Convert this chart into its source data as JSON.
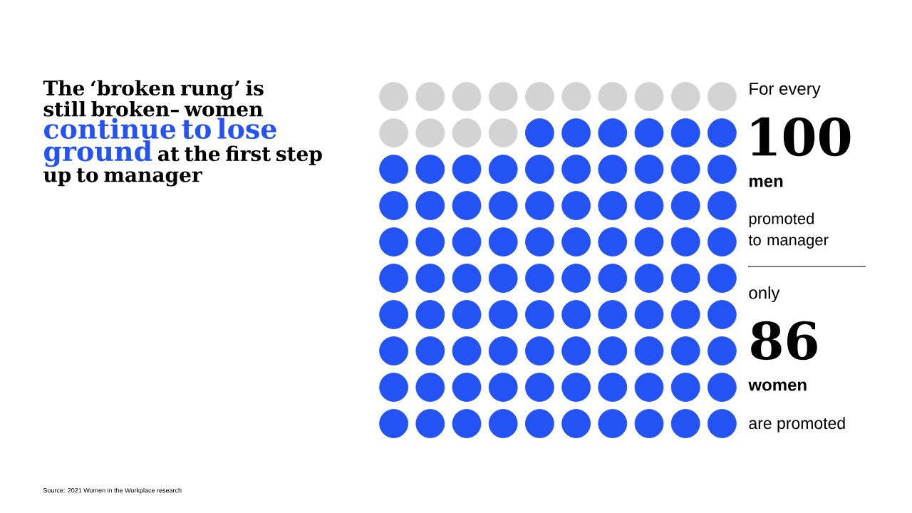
{
  "chart_data": {
    "type": "other",
    "title": "The ‘broken rung’ is still broken– women",
    "subtitle": "continue to lose ground",
    "categories": [
      "men",
      "women"
    ],
    "values": [
      100,
      86
    ],
    "colors": [
      "#d3d3d3",
      "#2352f5"
    ],
    "data_labels": true,
    "annotations": [
      "at the first step up to manager",
      "For every",
      "promoted to manager",
      "only",
      "are promoted",
      "Source: 2021 Women in the Workplace research"
    ]
  }
}
